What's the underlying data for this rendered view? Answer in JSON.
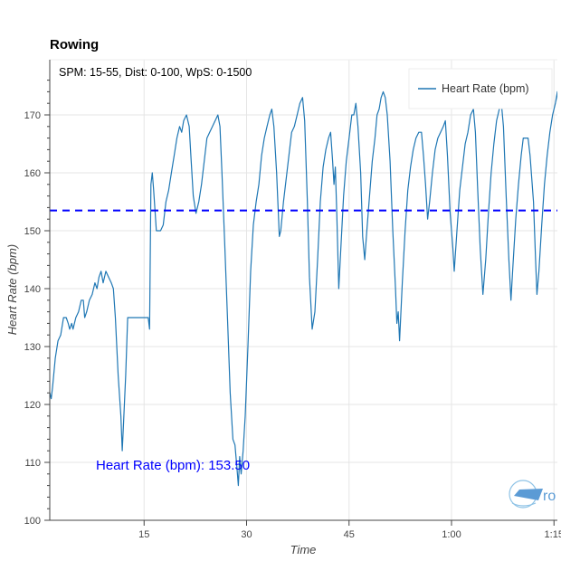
{
  "chart_data": {
    "type": "line",
    "title": "Rowing",
    "subtitle": "SPM: 15-55, Dist: 0-100, WpS: 0-1500",
    "xlabel": "Time",
    "ylabel": "Heart Rate (bpm)",
    "ylim": [
      100,
      175
    ],
    "xlim": [
      0,
      75
    ],
    "grid": true,
    "legend_position": "top-right",
    "x_ticks": [
      {
        "v": 15,
        "label": "15"
      },
      {
        "v": 30,
        "label": "30"
      },
      {
        "v": 45,
        "label": "45"
      },
      {
        "v": 60,
        "label": "1:00"
      },
      {
        "v": 75,
        "label": "1:15"
      }
    ],
    "y_ticks": [
      100,
      110,
      120,
      130,
      140,
      150,
      160,
      170
    ],
    "series": [
      {
        "name": "Heart Rate (bpm)",
        "color": "#1f77b4",
        "points": [
          [
            0.9,
            123
          ],
          [
            1.2,
            122
          ],
          [
            1.4,
            121
          ],
          [
            1.6,
            123
          ],
          [
            2.0,
            128
          ],
          [
            2.4,
            131
          ],
          [
            2.8,
            132
          ],
          [
            3.2,
            135
          ],
          [
            3.6,
            135
          ],
          [
            3.9,
            134
          ],
          [
            4.1,
            133
          ],
          [
            4.4,
            134
          ],
          [
            4.6,
            133
          ],
          [
            5.0,
            135
          ],
          [
            5.4,
            136
          ],
          [
            5.8,
            138
          ],
          [
            6.1,
            138
          ],
          [
            6.3,
            135
          ],
          [
            6.6,
            136
          ],
          [
            7.0,
            138
          ],
          [
            7.4,
            139
          ],
          [
            7.8,
            141
          ],
          [
            8.1,
            140
          ],
          [
            8.4,
            142
          ],
          [
            8.7,
            143
          ],
          [
            9.0,
            141
          ],
          [
            9.2,
            142
          ],
          [
            9.4,
            143
          ],
          [
            9.8,
            142
          ],
          [
            10.2,
            141
          ],
          [
            10.5,
            140
          ],
          [
            10.8,
            135
          ],
          [
            11.2,
            125
          ],
          [
            11.6,
            118
          ],
          [
            11.8,
            112
          ],
          [
            12.0,
            117
          ],
          [
            12.3,
            125
          ],
          [
            12.6,
            135
          ],
          [
            13.0,
            135
          ],
          [
            14.0,
            135
          ],
          [
            15.0,
            135
          ],
          [
            15.6,
            135
          ],
          [
            15.8,
            133
          ],
          [
            16.0,
            158
          ],
          [
            16.2,
            160
          ],
          [
            16.4,
            157
          ],
          [
            16.8,
            150
          ],
          [
            17.4,
            150
          ],
          [
            17.8,
            151
          ],
          [
            18.2,
            155
          ],
          [
            18.6,
            157
          ],
          [
            19.0,
            160
          ],
          [
            19.4,
            163
          ],
          [
            19.8,
            166
          ],
          [
            20.2,
            168
          ],
          [
            20.5,
            167
          ],
          [
            20.8,
            169
          ],
          [
            21.2,
            170
          ],
          [
            21.6,
            168
          ],
          [
            21.9,
            162
          ],
          [
            22.2,
            156
          ],
          [
            22.6,
            153
          ],
          [
            23.0,
            155
          ],
          [
            23.4,
            158
          ],
          [
            23.8,
            162
          ],
          [
            24.2,
            166
          ],
          [
            24.6,
            167
          ],
          [
            25.0,
            168
          ],
          [
            25.4,
            169
          ],
          [
            25.8,
            170
          ],
          [
            26.1,
            168
          ],
          [
            26.4,
            160
          ],
          [
            26.8,
            148
          ],
          [
            27.2,
            135
          ],
          [
            27.6,
            122
          ],
          [
            28.0,
            114
          ],
          [
            28.3,
            113
          ],
          [
            28.6,
            109
          ],
          [
            28.8,
            106
          ],
          [
            29.0,
            111
          ],
          [
            29.2,
            108
          ],
          [
            29.5,
            112
          ],
          [
            29.8,
            118
          ],
          [
            30.2,
            130
          ],
          [
            30.6,
            143
          ],
          [
            31.0,
            151
          ],
          [
            31.4,
            155
          ],
          [
            31.8,
            158
          ],
          [
            32.2,
            163
          ],
          [
            32.6,
            166
          ],
          [
            33.0,
            168
          ],
          [
            33.4,
            170
          ],
          [
            33.7,
            171
          ],
          [
            34.0,
            168
          ],
          [
            34.4,
            160
          ],
          [
            34.8,
            149
          ],
          [
            35.0,
            150
          ],
          [
            35.4,
            155
          ],
          [
            35.8,
            159
          ],
          [
            36.2,
            163
          ],
          [
            36.6,
            167
          ],
          [
            37.0,
            168
          ],
          [
            37.4,
            170
          ],
          [
            37.8,
            172
          ],
          [
            38.2,
            173
          ],
          [
            38.5,
            169
          ],
          [
            38.9,
            155
          ],
          [
            39.2,
            142
          ],
          [
            39.6,
            133
          ],
          [
            40.0,
            136
          ],
          [
            40.4,
            145
          ],
          [
            40.8,
            155
          ],
          [
            41.2,
            161
          ],
          [
            41.6,
            164
          ],
          [
            42.0,
            166
          ],
          [
            42.3,
            167
          ],
          [
            42.6,
            162
          ],
          [
            42.8,
            158
          ],
          [
            43.0,
            161
          ],
          [
            43.2,
            153
          ],
          [
            43.5,
            140
          ],
          [
            43.8,
            147
          ],
          [
            44.2,
            156
          ],
          [
            44.6,
            162
          ],
          [
            45.0,
            166
          ],
          [
            45.4,
            170
          ],
          [
            45.7,
            170
          ],
          [
            46.0,
            172
          ],
          [
            46.3,
            168
          ],
          [
            46.7,
            160
          ],
          [
            47.0,
            149
          ],
          [
            47.3,
            145
          ],
          [
            47.6,
            150
          ],
          [
            48.0,
            156
          ],
          [
            48.4,
            162
          ],
          [
            48.8,
            166
          ],
          [
            49.1,
            170
          ],
          [
            49.4,
            171
          ],
          [
            49.7,
            173
          ],
          [
            50.0,
            174
          ],
          [
            50.3,
            173
          ],
          [
            50.6,
            170
          ],
          [
            51.0,
            162
          ],
          [
            51.4,
            150
          ],
          [
            51.8,
            140
          ],
          [
            52.0,
            134
          ],
          [
            52.2,
            136
          ],
          [
            52.4,
            131
          ],
          [
            52.8,
            141
          ],
          [
            53.2,
            150
          ],
          [
            53.6,
            157
          ],
          [
            54.0,
            161
          ],
          [
            54.4,
            164
          ],
          [
            54.8,
            166
          ],
          [
            55.2,
            167
          ],
          [
            55.6,
            167
          ],
          [
            55.9,
            163
          ],
          [
            56.2,
            158
          ],
          [
            56.5,
            152
          ],
          [
            56.8,
            155
          ],
          [
            57.2,
            160
          ],
          [
            57.6,
            164
          ],
          [
            58.0,
            166
          ],
          [
            58.4,
            167
          ],
          [
            58.8,
            168
          ],
          [
            59.1,
            169
          ],
          [
            59.4,
            163
          ],
          [
            59.8,
            153
          ],
          [
            60.2,
            147
          ],
          [
            60.4,
            143
          ],
          [
            60.8,
            150
          ],
          [
            61.2,
            157
          ],
          [
            61.6,
            161
          ],
          [
            62.0,
            165
          ],
          [
            62.4,
            167
          ],
          [
            62.8,
            170
          ],
          [
            63.2,
            171
          ],
          [
            63.5,
            167
          ],
          [
            63.8,
            158
          ],
          [
            64.2,
            147
          ],
          [
            64.6,
            139
          ],
          [
            65.0,
            145
          ],
          [
            65.4,
            153
          ],
          [
            65.8,
            160
          ],
          [
            66.2,
            165
          ],
          [
            66.6,
            169
          ],
          [
            67.0,
            171
          ],
          [
            67.3,
            172
          ],
          [
            67.6,
            168
          ],
          [
            68.0,
            156
          ],
          [
            68.4,
            145
          ],
          [
            68.7,
            138
          ],
          [
            69.0,
            144
          ],
          [
            69.4,
            152
          ],
          [
            69.8,
            158
          ],
          [
            70.2,
            163
          ],
          [
            70.5,
            166
          ],
          [
            70.8,
            166
          ],
          [
            71.2,
            166
          ],
          [
            71.5,
            163
          ],
          [
            72.0,
            155
          ],
          [
            72.3,
            145
          ],
          [
            72.5,
            139
          ],
          [
            72.8,
            143
          ],
          [
            73.2,
            151
          ],
          [
            73.6,
            158
          ],
          [
            74.0,
            163
          ],
          [
            74.4,
            167
          ],
          [
            74.8,
            170
          ],
          [
            75.2,
            172
          ],
          [
            75.5,
            174
          ],
          [
            75.8,
            167
          ],
          [
            76.1,
            155
          ],
          [
            76.3,
            145
          ]
        ]
      }
    ],
    "reference_line": {
      "value": 153.5,
      "color": "#0000ff",
      "style": "dashed",
      "label": "Heart Rate (bpm): 153.50"
    }
  },
  "labels": {
    "title": "Rowing",
    "subtitle": "SPM: 15-55, Dist: 0-100, WpS: 0-1500",
    "xlabel": "Time",
    "ylabel": "Heart Rate (bpm)",
    "legend_item": "Heart Rate (bpm)",
    "avg_label": "Heart Rate (bpm): 153.50",
    "logo_text": "ro"
  },
  "colors": {
    "line": "#1f77b4",
    "avg": "#0000ff",
    "grid": "#e5e5e5",
    "axis": "#444444"
  }
}
